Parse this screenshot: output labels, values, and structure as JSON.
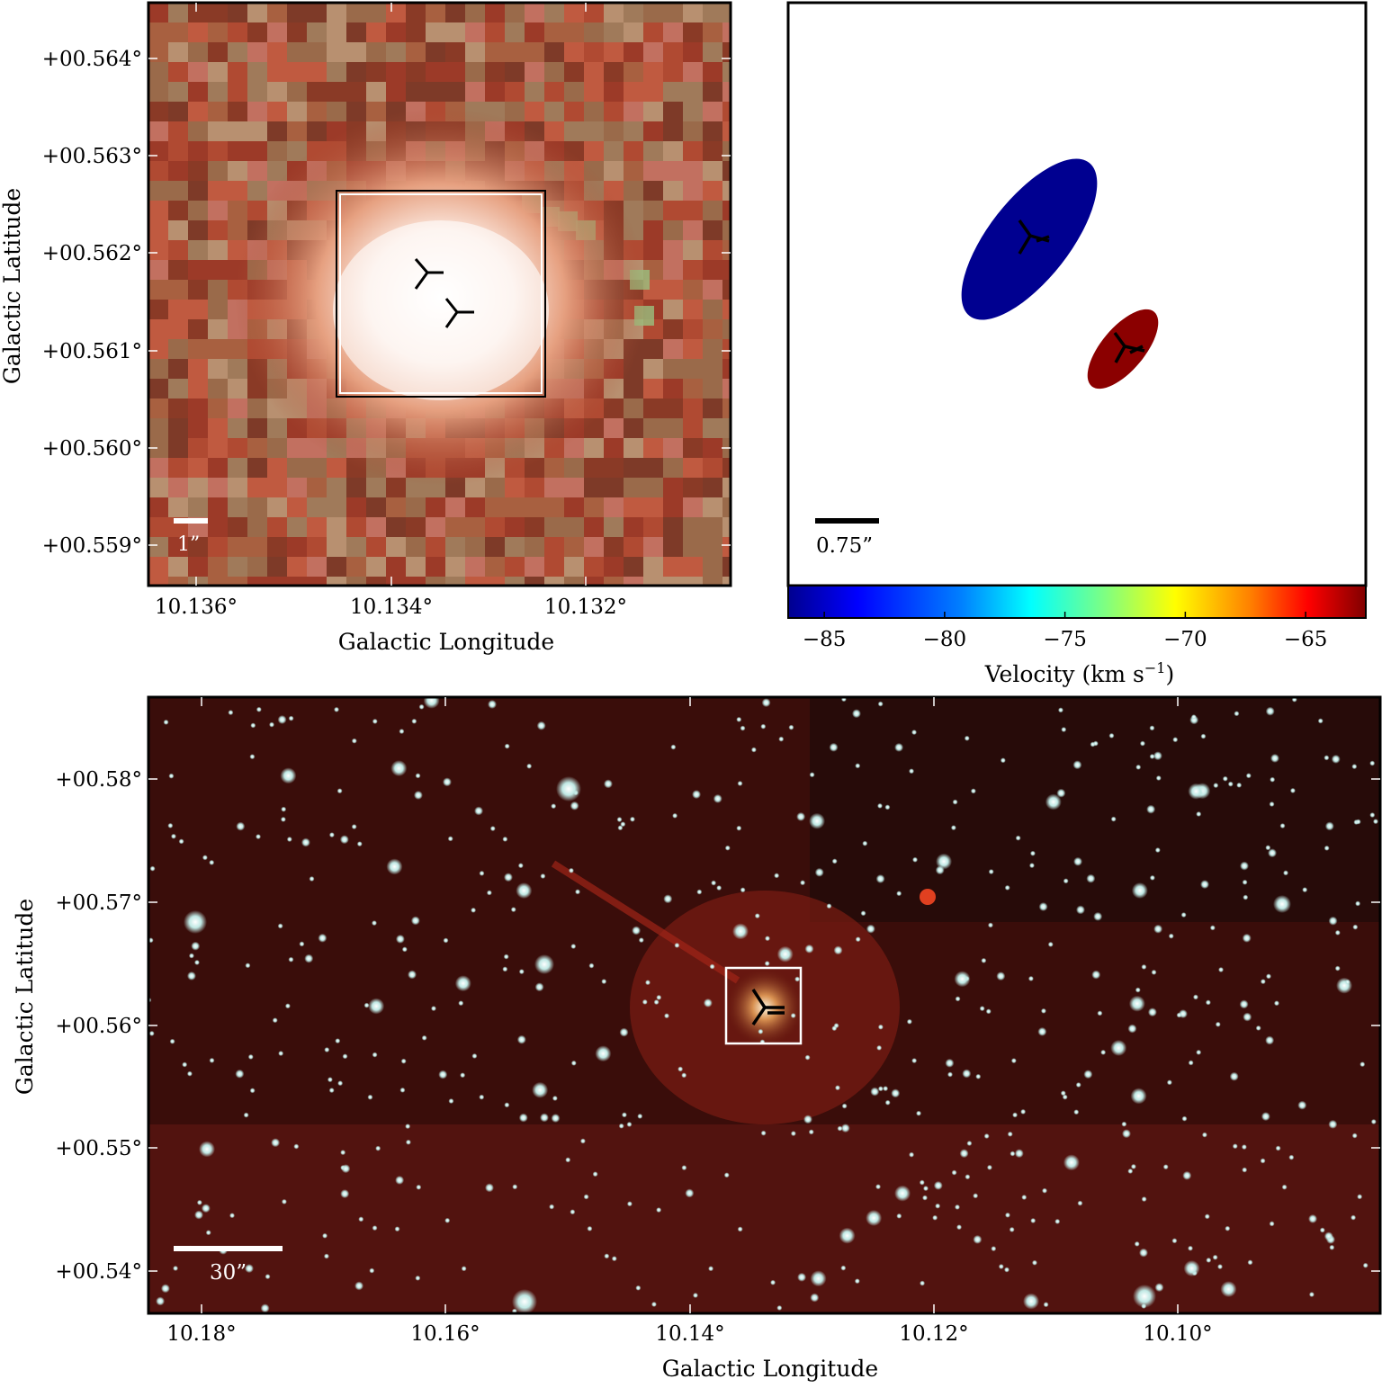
{
  "panels": {
    "top_left": {
      "xlabel": "Galactic Longitude",
      "ylabel": "Galactic Latitude",
      "x_ticks": [
        "10.136°",
        "10.134°",
        "10.132°"
      ],
      "y_ticks": [
        "+00.564°",
        "+00.563°",
        "+00.562°",
        "+00.561°",
        "+00.560°",
        "+00.559°"
      ],
      "scalebar_label": "1”",
      "image_tone": "red-brown dust with a bright white core"
    },
    "top_right": {
      "scalebar_label": "0.75”",
      "colorbar": {
        "label": "Velocity (km s",
        "label_sup": "−1",
        "label_end": ")",
        "ticks": [
          "−85",
          "−80",
          "−75",
          "−70",
          "−65"
        ],
        "range": [
          -86.5,
          -62.5
        ],
        "colors": [
          "#00008f",
          "#0000ff",
          "#0080ff",
          "#00ffff",
          "#80ff80",
          "#ffff00",
          "#ff8000",
          "#ff0000",
          "#800000"
        ]
      },
      "sources": [
        {
          "name": "blue-source",
          "velocity": -85,
          "color": "#000090"
        },
        {
          "name": "red-source",
          "velocity": -63,
          "color": "#8b0000"
        }
      ]
    },
    "bottom": {
      "xlabel": "Galactic Longitude",
      "ylabel": "Galactic Latitude",
      "x_ticks": [
        "10.18°",
        "10.16°",
        "10.14°",
        "10.12°",
        "10.10°"
      ],
      "y_ticks": [
        "+00.58°",
        "+00.57°",
        "+00.56°",
        "+00.55°",
        "+00.54°"
      ],
      "scalebar_label": "30”",
      "image_tone": "dark red field densely populated with stars"
    }
  }
}
